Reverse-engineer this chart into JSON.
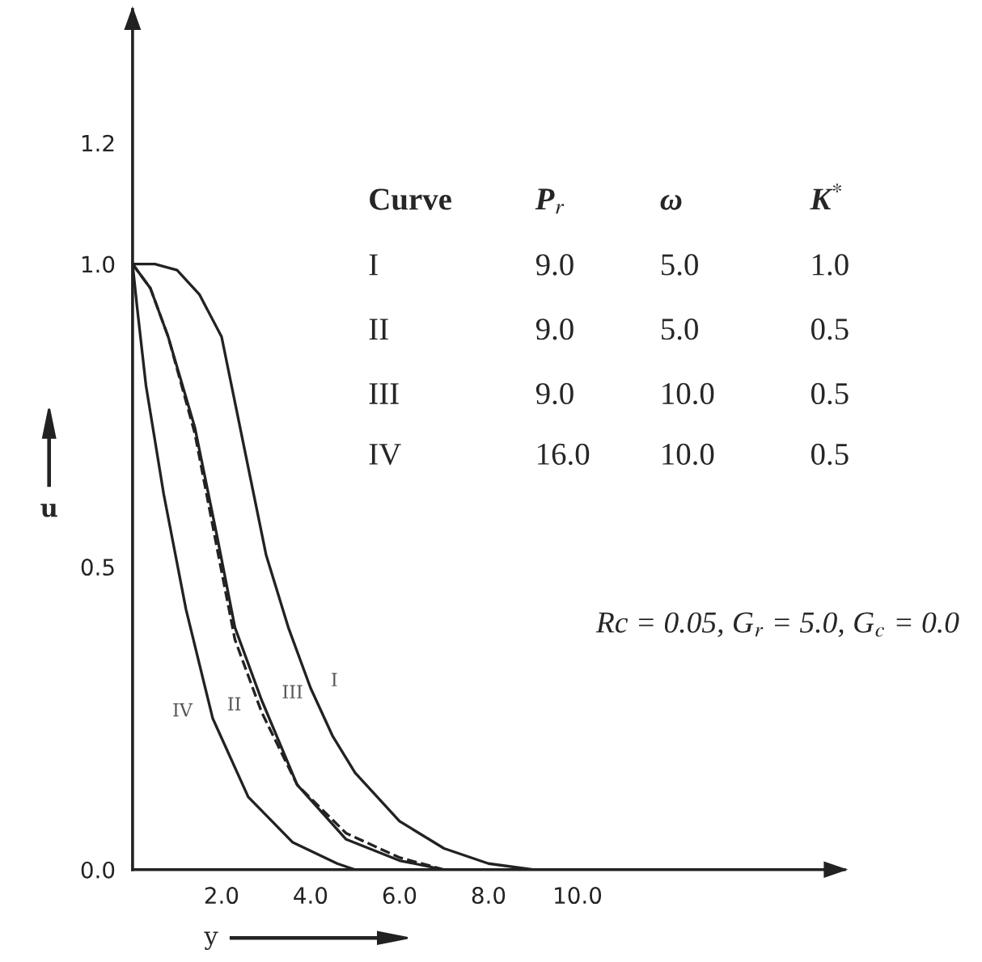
{
  "chart_data": {
    "type": "line",
    "xlabel": "y",
    "ylabel": "u",
    "xlim": [
      0,
      16
    ],
    "ylim": [
      0,
      1.42
    ],
    "xticks": [
      {
        "value": 2,
        "label": "2.0"
      },
      {
        "value": 4,
        "label": "4.0"
      },
      {
        "value": 6,
        "label": "6.0"
      },
      {
        "value": 8,
        "label": "8.0"
      },
      {
        "value": 10,
        "label": "10.0"
      }
    ],
    "yticks": [
      {
        "value": 0,
        "label": "0.0"
      },
      {
        "value": 0.5,
        "label": "0.5"
      },
      {
        "value": 1.0,
        "label": "1.0"
      },
      {
        "value": 1.2,
        "label": "1.2"
      }
    ],
    "grid": false,
    "legend": false,
    "marker": "none",
    "series": [
      {
        "color": "#222222",
        "line_style": "solid",
        "x": [
          0,
          0.5,
          1.0,
          1.5,
          2.0,
          2.5,
          3.0,
          3.5,
          4.0,
          4.5,
          5.0,
          6.0,
          7.0,
          8.0,
          9.0,
          10.0
        ],
        "values": [
          1.0,
          1.0,
          0.99,
          0.95,
          0.88,
          0.7,
          0.52,
          0.4,
          0.3,
          0.22,
          0.16,
          0.08,
          0.035,
          0.01,
          0.0,
          0.0
        ]
      },
      {
        "color": "#222222",
        "line_style": "dashed",
        "x": [
          0,
          0.4,
          0.8,
          1.4,
          1.9,
          2.3,
          2.9,
          3.7,
          4.8,
          6.0,
          7.0
        ],
        "values": [
          1.0,
          0.96,
          0.88,
          0.72,
          0.53,
          0.38,
          0.26,
          0.14,
          0.06,
          0.02,
          0.0
        ]
      },
      {
        "color": "#222222",
        "line_style": "solid",
        "x": [
          0,
          0.4,
          0.8,
          1.4,
          1.9,
          2.3,
          2.9,
          3.7,
          4.8,
          6.0,
          7.0
        ],
        "values": [
          1.0,
          0.96,
          0.88,
          0.73,
          0.55,
          0.4,
          0.28,
          0.14,
          0.05,
          0.015,
          0.0
        ]
      },
      {
        "color": "#222222",
        "line_style": "solid",
        "x": [
          0,
          0.1,
          0.3,
          0.7,
          1.2,
          1.8,
          2.6,
          3.6,
          4.6,
          5.0
        ],
        "values": [
          1.0,
          0.93,
          0.8,
          0.62,
          0.43,
          0.25,
          0.12,
          0.045,
          0.01,
          0.0
        ]
      }
    ],
    "annotations": [
      {
        "text": "I",
        "x": 4.0,
        "y": 0.3
      },
      {
        "text": "II",
        "x": 2.9,
        "y": 0.26
      },
      {
        "text": "III",
        "x": 2.9,
        "y": 0.28
      },
      {
        "text": "IV",
        "x": 1.8,
        "y": 0.25
      },
      "Curve",
      "P$_{r}$",
      "ω",
      "K$^{*}$",
      "I",
      "9.0",
      "5.0",
      "1.0",
      "II",
      "9.0",
      "5.0",
      "0.5",
      "III",
      "9.0",
      "10.0",
      "0.5",
      "IV",
      "16.0",
      "10.0",
      "0.5",
      "Rc = 0.05, G$_{r}$ = 5.0, G$_{c}$ = 0.0"
    ]
  }
}
